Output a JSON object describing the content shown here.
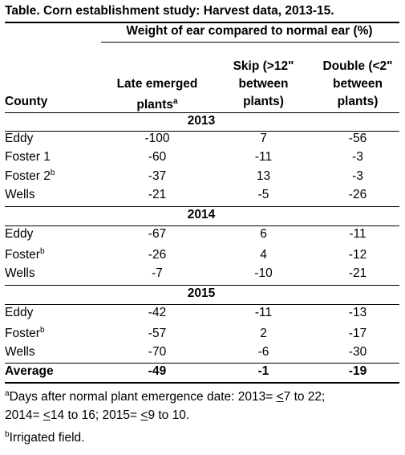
{
  "title": "Table. Corn establishment study: Harvest data, 2013-15.",
  "super_header": "Weight of ear compared to normal ear (%)",
  "columns": {
    "county": "County",
    "late_line1": "Late emerged",
    "late_line2": "plants",
    "late_sup": "a",
    "skip_line1": "Skip (>12\"",
    "skip_line2": "between",
    "skip_line3": "plants)",
    "double_line1": "Double (<2\"",
    "double_line2": "between",
    "double_line3": "plants)"
  },
  "sections": [
    {
      "year": "2013",
      "rows": [
        {
          "county": "Eddy",
          "sup": "",
          "late": "-100",
          "skip": "7",
          "double": "-56"
        },
        {
          "county": "Foster 1",
          "sup": "",
          "late": "-60",
          "skip": "-11",
          "double": "-3"
        },
        {
          "county": "Foster 2",
          "sup": "b",
          "late": "-37",
          "skip": "13",
          "double": "-3"
        },
        {
          "county": "Wells",
          "sup": "",
          "late": "-21",
          "skip": "-5",
          "double": "-26"
        }
      ]
    },
    {
      "year": "2014",
      "rows": [
        {
          "county": "Eddy",
          "sup": "",
          "late": "-67",
          "skip": "6",
          "double": "-11"
        },
        {
          "county": "Foster",
          "sup": "b",
          "late": "-26",
          "skip": "4",
          "double": "-12"
        },
        {
          "county": "Wells",
          "sup": "",
          "late": "-7",
          "skip": "-10",
          "double": "-21"
        }
      ]
    },
    {
      "year": "2015",
      "rows": [
        {
          "county": "Eddy",
          "sup": "",
          "late": "-42",
          "skip": "-11",
          "double": "-13"
        },
        {
          "county": "Foster",
          "sup": "b",
          "late": "-57",
          "skip": "2",
          "double": "-17"
        },
        {
          "county": "Wells",
          "sup": "",
          "late": "-70",
          "skip": "-6",
          "double": "-30"
        }
      ]
    }
  ],
  "average": {
    "label": "Average",
    "late": "-49",
    "skip": "-1",
    "double": "-19"
  },
  "footnotes": {
    "a_mark": "a",
    "a_text_1": "Days after normal plant emergence date: 2013= ",
    "a_le_1": "<",
    "a_text_2": "7 to 22;",
    "a_text_3": "2014= ",
    "a_le_2": "<",
    "a_text_4": "14 to 16; 2015= ",
    "a_le_3": "<",
    "a_text_5": "9 to 10.",
    "b_mark": "b",
    "b_text": "Irrigated field."
  }
}
